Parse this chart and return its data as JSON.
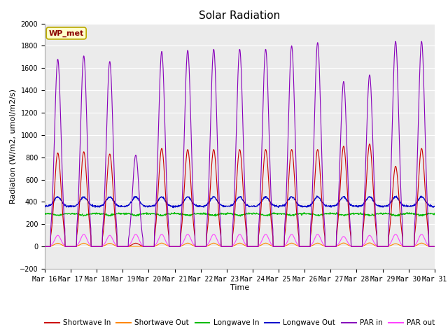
{
  "title": "Solar Radiation",
  "xlabel": "Time",
  "ylabel": "Radiation (W/m2, umol/m2/s)",
  "ylim": [
    -200,
    2000
  ],
  "yticks": [
    -200,
    0,
    200,
    400,
    600,
    800,
    1000,
    1200,
    1400,
    1600,
    1800,
    2000
  ],
  "date_labels": [
    "Mar 16",
    "Mar 17",
    "Mar 18",
    "Mar 19",
    "Mar 20",
    "Mar 21",
    "Mar 22",
    "Mar 23",
    "Mar 24",
    "Mar 25",
    "Mar 26",
    "Mar 27",
    "Mar 28",
    "Mar 29",
    "Mar 30",
    "Mar 31"
  ],
  "station_label": "WP_met",
  "bg_color": "#ebebeb",
  "series": {
    "shortwave_in": {
      "color": "#cc0000",
      "label": "Shortwave In"
    },
    "shortwave_out": {
      "color": "#ff8800",
      "label": "Shortwave Out"
    },
    "longwave_in": {
      "color": "#00bb00",
      "label": "Longwave In"
    },
    "longwave_out": {
      "color": "#0000cc",
      "label": "Longwave Out"
    },
    "par_in": {
      "color": "#8800bb",
      "label": "PAR in"
    },
    "par_out": {
      "color": "#ff44ff",
      "label": "PAR out"
    }
  },
  "n_days": 15,
  "pts_per_day": 96,
  "sw_peaks": [
    840,
    850,
    830,
    30,
    880,
    870,
    870,
    870,
    870,
    870,
    870,
    900,
    920,
    720,
    880
  ],
  "par_peaks": [
    1680,
    1710,
    1660,
    820,
    1750,
    1760,
    1770,
    1770,
    1770,
    1800,
    1830,
    1480,
    1540,
    1840,
    1840
  ],
  "par_out_peaks": [
    100,
    110,
    100,
    110,
    110,
    110,
    110,
    110,
    110,
    110,
    110,
    90,
    100,
    110,
    110
  ],
  "lw_in_base": 295,
  "lw_out_base": 360,
  "figsize": [
    6.4,
    4.8
  ],
  "dpi": 100
}
